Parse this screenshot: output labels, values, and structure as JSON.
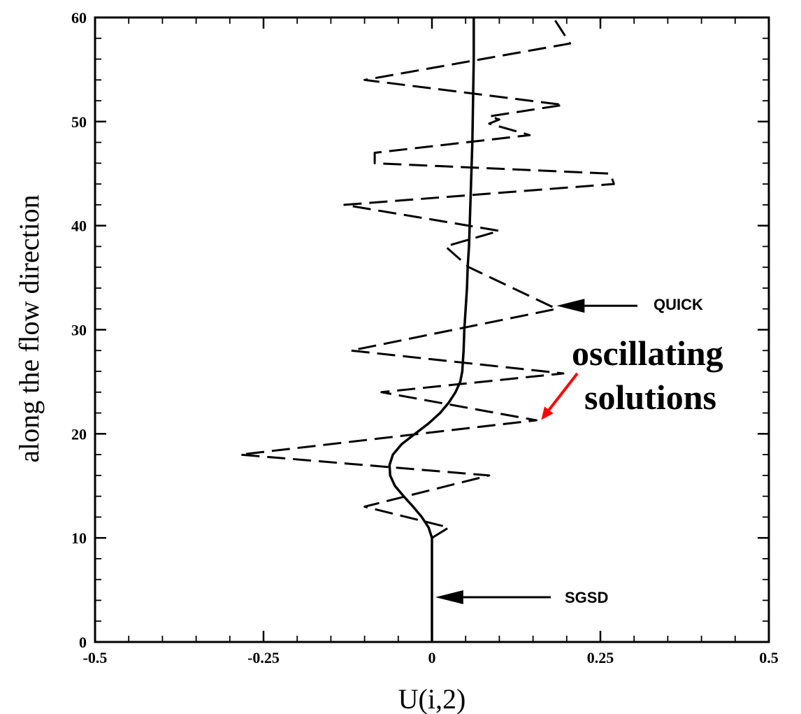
{
  "chart_data": {
    "type": "line",
    "xlabel": "U(i,2)",
    "ylabel": "along the flow direction",
    "xlim": [
      -0.5,
      0.5
    ],
    "ylim": [
      0,
      60
    ],
    "x_ticks": [
      -0.5,
      -0.25,
      0,
      0.25,
      0.5
    ],
    "x_tick_labels": [
      "-0.5",
      "-0.25",
      "0",
      "0.25",
      "0.5"
    ],
    "y_ticks": [
      0,
      10,
      20,
      30,
      40,
      50,
      60
    ],
    "y_tick_labels": [
      "0",
      "10",
      "20",
      "30",
      "40",
      "50",
      "60"
    ],
    "grid": false,
    "series": [
      {
        "name": "SGSD",
        "style": "solid",
        "color": "#000000",
        "points": [
          [
            0,
            0
          ],
          [
            0,
            10
          ],
          [
            -0.005,
            11
          ],
          [
            -0.015,
            12
          ],
          [
            -0.028,
            13
          ],
          [
            -0.042,
            14
          ],
          [
            -0.055,
            15
          ],
          [
            -0.062,
            16
          ],
          [
            -0.063,
            17
          ],
          [
            -0.058,
            18
          ],
          [
            -0.045,
            19
          ],
          [
            -0.025,
            20
          ],
          [
            -0.005,
            21
          ],
          [
            0.012,
            22
          ],
          [
            0.025,
            23
          ],
          [
            0.035,
            24
          ],
          [
            0.042,
            25
          ],
          [
            0.045,
            26
          ],
          [
            0.046,
            27
          ],
          [
            0.047,
            28
          ],
          [
            0.048,
            30
          ],
          [
            0.05,
            32
          ],
          [
            0.052,
            34
          ],
          [
            0.053,
            36
          ],
          [
            0.055,
            38
          ],
          [
            0.056,
            40
          ],
          [
            0.058,
            44
          ],
          [
            0.06,
            48
          ],
          [
            0.061,
            52
          ],
          [
            0.062,
            56
          ],
          [
            0.062,
            60
          ]
        ]
      },
      {
        "name": "QUICK",
        "style": "dashed",
        "color": "#000000",
        "points": [
          [
            0,
            10
          ],
          [
            0.025,
            11
          ],
          [
            -0.1,
            13
          ],
          [
            0.085,
            16
          ],
          [
            -0.285,
            18
          ],
          [
            0.155,
            21.3
          ],
          [
            -0.075,
            24
          ],
          [
            0.195,
            25.8
          ],
          [
            -0.12,
            28
          ],
          [
            0.185,
            32
          ],
          [
            0.055,
            36
          ],
          [
            0.02,
            38
          ],
          [
            0.1,
            39.5
          ],
          [
            -0.13,
            42
          ],
          [
            0.27,
            44
          ],
          [
            0.265,
            45
          ],
          [
            -0.085,
            46
          ],
          [
            -0.085,
            47
          ],
          [
            0.145,
            48.7
          ],
          [
            0.085,
            49.8
          ],
          [
            0.1,
            50.2
          ],
          [
            0.085,
            50.5
          ],
          [
            0.195,
            51.6
          ],
          [
            -0.1,
            54
          ],
          [
            0.205,
            57.5
          ],
          [
            0.18,
            60
          ]
        ]
      }
    ],
    "annotations": [
      {
        "text": "QUICK",
        "target": [
          0.185,
          32.3
        ]
      },
      {
        "text": "SGSD",
        "target": [
          0.005,
          4.3
        ]
      },
      {
        "text_lines": [
          "oscillating",
          "solutions"
        ],
        "color": "#ff0000",
        "target": [
          0.158,
          21.2
        ]
      }
    ]
  }
}
